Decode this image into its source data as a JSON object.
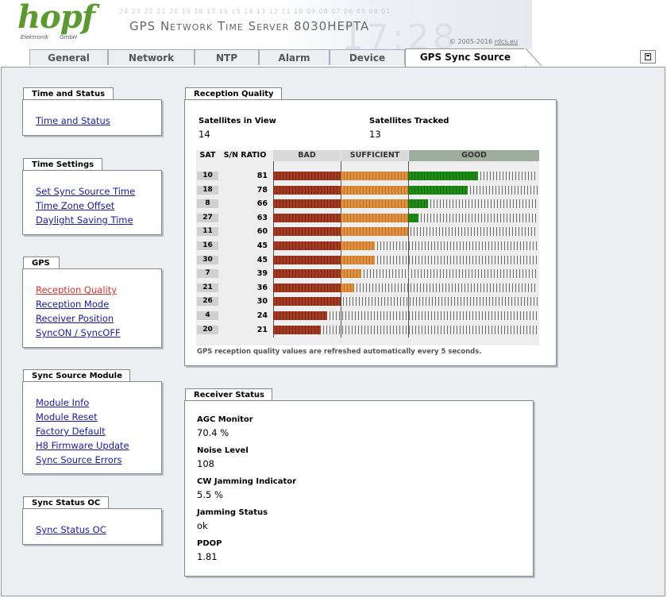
{
  "header": {
    "logo_word": "hopf",
    "logo_sub_left": "Elektronik",
    "logo_sub_right": "GmbH",
    "deco_digits": "24 23 22 21 20 19 18 17 16 15 14 13 12 11 10 09 08 07 06 05 04 01",
    "deco_big": "17:28",
    "title": "GPS Network Time Server 8030HEPTA",
    "copyright": "© 2005-2016",
    "copyright_link": "rdcs.eu"
  },
  "tabs": [
    {
      "label": "General",
      "active": false
    },
    {
      "label": "Network",
      "active": false
    },
    {
      "label": "NTP",
      "active": false
    },
    {
      "label": "Alarm",
      "active": false
    },
    {
      "label": "Device",
      "active": false
    },
    {
      "label": "GPS Sync Source",
      "active": true
    }
  ],
  "sidebar": {
    "time_status": {
      "title": "Time and Status",
      "links": [
        "Time and Status"
      ]
    },
    "time_settings": {
      "title": "Time Settings",
      "links": [
        "Set Sync Source Time",
        "Time Zone Offset",
        "Daylight Saving Time"
      ]
    },
    "gps": {
      "title": "GPS",
      "links": [
        "Reception Quality",
        "Reception Mode",
        "Receiver Position",
        "SyncON / SyncOFF"
      ],
      "active_index": 0
    },
    "sync_source_module": {
      "title": "Sync Source Module",
      "links": [
        "Module Info",
        "Module Reset",
        "Factory Default",
        "H8 Firmware Update",
        "Sync Source Errors"
      ]
    },
    "sync_status_oc": {
      "title": "Sync Status OC",
      "links": [
        "Sync Status OC"
      ]
    }
  },
  "reception": {
    "title": "Reception Quality",
    "in_view_label": "Satellites in View",
    "in_view_value": "14",
    "tracked_label": "Satellites Tracked",
    "tracked_value": "13",
    "col_sat": "SAT",
    "col_snr": "S/N RATIO",
    "col_bad": "BAD",
    "col_sufficient": "SUFFICIENT",
    "col_good": "GOOD",
    "colors": {
      "bad": "#a83a22",
      "sufficient": "#e0903e",
      "good": "#1c8c14"
    },
    "scale": {
      "bad_max": 30,
      "sufficient_max": 60,
      "max": 99
    },
    "rows": [
      {
        "sat": "10",
        "snr": 81
      },
      {
        "sat": "18",
        "snr": 78
      },
      {
        "sat": "8",
        "snr": 66
      },
      {
        "sat": "27",
        "snr": 63
      },
      {
        "sat": "11",
        "snr": 60
      },
      {
        "sat": "16",
        "snr": 45
      },
      {
        "sat": "30",
        "snr": 45
      },
      {
        "sat": "7",
        "snr": 39
      },
      {
        "sat": "21",
        "snr": 36
      },
      {
        "sat": "26",
        "snr": 30
      },
      {
        "sat": "4",
        "snr": 24
      },
      {
        "sat": "20",
        "snr": 21
      }
    ],
    "footnote": "GPS reception quality values are refreshed automatically every 5 seconds."
  },
  "receiver": {
    "title": "Receiver Status",
    "items": [
      {
        "label": "AGC Monitor",
        "value": "70.4 %"
      },
      {
        "label": "Noise Level",
        "value": "108"
      },
      {
        "label": "CW Jamming Indicator",
        "value": "5.5 %"
      },
      {
        "label": "Jamming Status",
        "value": "ok"
      },
      {
        "label": "PDOP",
        "value": "1.81"
      }
    ]
  }
}
